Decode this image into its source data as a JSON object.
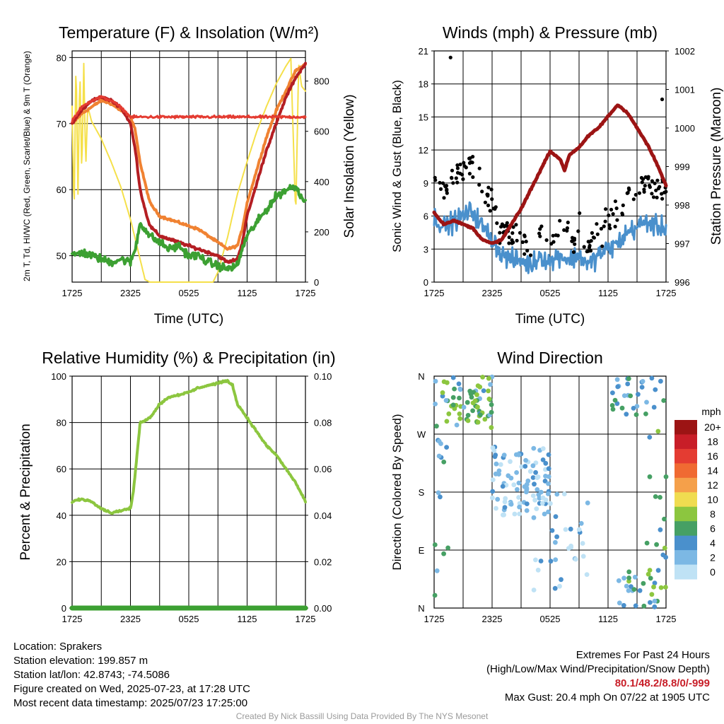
{
  "chart_data": [
    {
      "id": "temperature",
      "type": "line",
      "title": "Temperature (F) & Insolation (W/m²)",
      "xlabel": "Time (UTC)",
      "ylabel": "2m T, Td, HI/WC (Red, Green, Scarlet/Blue) & 9m T (Orange)",
      "ylabel2": "Solar Insolation (Yellow)",
      "x_ticks": [
        "1725",
        "2325",
        "0525",
        "1125",
        "1725"
      ],
      "x_hours": [
        0,
        24
      ],
      "ylim": [
        46,
        81
      ],
      "y_ticks": [
        50,
        60,
        70,
        80
      ],
      "y2lim": [
        0,
        920
      ],
      "y2_ticks": [
        0,
        200,
        400,
        600,
        800
      ],
      "grid": true,
      "series": [
        {
          "color": "#f5e04a",
          "axis": "right",
          "points": [
            [
              0,
              700
            ],
            [
              0.2,
              250
            ],
            [
              0.4,
              900
            ],
            [
              0.6,
              350
            ],
            [
              0.8,
              850
            ],
            [
              1.0,
              420
            ],
            [
              1.2,
              870
            ],
            [
              1.4,
              450
            ],
            [
              1.6,
              700
            ],
            [
              2,
              640
            ],
            [
              3,
              570
            ],
            [
              4,
              480
            ],
            [
              5,
              380
            ],
            [
              6,
              250
            ],
            [
              7,
              90
            ],
            [
              7.5,
              10
            ],
            [
              8,
              0
            ],
            [
              14.5,
              0
            ],
            [
              15,
              40
            ],
            [
              16,
              180
            ],
            [
              17,
              350
            ],
            [
              18,
              480
            ],
            [
              19,
              600
            ],
            [
              20,
              700
            ],
            [
              21,
              790
            ],
            [
              22,
              860
            ],
            [
              22.5,
              890
            ],
            [
              23,
              260
            ],
            [
              23.3,
              870
            ],
            [
              23.6,
              780
            ],
            [
              24,
              760
            ]
          ]
        },
        {
          "color": "#f08232",
          "axis": "left",
          "points": [
            [
              0,
              70
            ],
            [
              1,
              71.5
            ],
            [
              2,
              72.5
            ],
            [
              3,
              73.5
            ],
            [
              4,
              73
            ],
            [
              5,
              72
            ],
            [
              6,
              71
            ],
            [
              6.5,
              69
            ],
            [
              7,
              64
            ],
            [
              7.5,
              61
            ],
            [
              8,
              58
            ],
            [
              9,
              56
            ],
            [
              10,
              55.5
            ],
            [
              11,
              55
            ],
            [
              12,
              54.5
            ],
            [
              13,
              54
            ],
            [
              14,
              53
            ],
            [
              15,
              52
            ],
            [
              16,
              51
            ],
            [
              17,
              51.5
            ],
            [
              17.5,
              54
            ],
            [
              18,
              58
            ],
            [
              19,
              63
            ],
            [
              20,
              68
            ],
            [
              21,
              72
            ],
            [
              22,
              75
            ],
            [
              23,
              78
            ],
            [
              24,
              79
            ]
          ]
        },
        {
          "color": "#b41e23",
          "axis": "left",
          "points": [
            [
              0,
              70
            ],
            [
              1,
              72
            ],
            [
              2,
              73.5
            ],
            [
              3,
              74
            ],
            [
              4,
              73.5
            ],
            [
              5,
              72.5
            ],
            [
              6,
              70
            ],
            [
              6.5,
              66
            ],
            [
              7,
              60
            ],
            [
              7.5,
              57
            ],
            [
              8,
              54.5
            ],
            [
              9,
              53
            ],
            [
              10,
              52.5
            ],
            [
              11,
              52
            ],
            [
              12,
              51.5
            ],
            [
              13,
              51
            ],
            [
              14,
              50.5
            ],
            [
              15,
              50
            ],
            [
              16,
              49
            ],
            [
              17,
              49.5
            ],
            [
              17.5,
              52
            ],
            [
              18,
              56
            ],
            [
              19,
              61
            ],
            [
              20,
              66
            ],
            [
              21,
              70
            ],
            [
              22,
              74
            ],
            [
              23,
              77
            ],
            [
              24,
              79
            ]
          ]
        },
        {
          "color": "#e43c32",
          "axis": "left",
          "points": [
            [
              0,
              70.5
            ],
            [
              1,
              72.5
            ],
            [
              2,
              73.5
            ],
            [
              3,
              74
            ],
            [
              4,
              73.5
            ],
            [
              5,
              72.5
            ],
            [
              6,
              71
            ]
          ]
        },
        {
          "color": "#3ca032",
          "axis": "left",
          "points": [
            [
              0,
              50
            ],
            [
              1,
              50.5
            ],
            [
              2,
              50
            ],
            [
              3,
              49.5
            ],
            [
              4,
              49
            ],
            [
              5,
              49.5
            ],
            [
              6,
              49
            ],
            [
              6.5,
              51
            ],
            [
              7,
              55
            ],
            [
              8,
              53
            ],
            [
              9,
              52
            ],
            [
              10,
              51
            ],
            [
              11,
              51.5
            ],
            [
              12,
              50
            ],
            [
              13,
              50
            ],
            [
              14,
              49
            ],
            [
              15,
              48.5
            ],
            [
              16,
              48
            ],
            [
              17,
              48.5
            ],
            [
              17.5,
              51
            ],
            [
              18,
              53
            ],
            [
              19,
              55
            ],
            [
              20,
              57
            ],
            [
              21,
              59
            ],
            [
              22,
              60
            ],
            [
              23,
              60.5
            ],
            [
              24,
              58
            ]
          ]
        }
      ]
    },
    {
      "id": "winds",
      "type": "line",
      "title": "Winds (mph) & Pressure (mb)",
      "xlabel": "Time (UTC)",
      "ylabel": "Sonic Wind & Gust (Blue, Black)",
      "ylabel2": "Station Pressure (Maroon)",
      "x_ticks": [
        "1725",
        "2325",
        "0525",
        "1125",
        "1725"
      ],
      "x_hours": [
        0,
        24
      ],
      "ylim": [
        0,
        21
      ],
      "y_ticks": [
        0,
        3,
        6,
        9,
        12,
        15,
        18,
        21
      ],
      "y2lim": [
        996,
        1002
      ],
      "y2_ticks": [
        996,
        997,
        998,
        999,
        1000,
        1001,
        1002
      ],
      "grid": true,
      "gust_scatter": {
        "color": "#000000",
        "note_max": [
          1.7,
          20.4
        ],
        "extra_high": [
          23.6,
          16.6
        ]
      },
      "series": [
        {
          "color": "#4a90cc",
          "axis": "left",
          "points": [
            [
              0,
              6
            ],
            [
              1,
              5
            ],
            [
              2,
              5.5
            ],
            [
              3,
              6
            ],
            [
              4,
              6.5
            ],
            [
              5,
              5
            ],
            [
              6,
              4
            ],
            [
              7,
              2.5
            ],
            [
              8,
              2
            ],
            [
              9,
              2
            ],
            [
              10,
              1.5
            ],
            [
              11,
              2.5
            ],
            [
              12,
              1.8
            ],
            [
              13,
              2.5
            ],
            [
              14,
              2
            ],
            [
              15,
              2.5
            ],
            [
              16,
              1.5
            ],
            [
              17,
              2.5
            ],
            [
              18,
              3
            ],
            [
              19,
              3.5
            ],
            [
              20,
              4.5
            ],
            [
              21,
              5
            ],
            [
              22,
              5.5
            ],
            [
              23,
              5
            ],
            [
              24,
              5
            ]
          ]
        },
        {
          "color": "#9c1414",
          "axis": "right",
          "points": [
            [
              0,
              997.8
            ],
            [
              1,
              997.5
            ],
            [
              2,
              997.6
            ],
            [
              3,
              997.5
            ],
            [
              4,
              997.4
            ],
            [
              5,
              997.1
            ],
            [
              6,
              997
            ],
            [
              7,
              997.1
            ],
            [
              8,
              997.5
            ],
            [
              9,
              997.9
            ],
            [
              10,
              998.4
            ],
            [
              11,
              998.9
            ],
            [
              12,
              999.4
            ],
            [
              13,
              999.2
            ],
            [
              13.5,
              998.9
            ],
            [
              14,
              999.3
            ],
            [
              15,
              999.5
            ],
            [
              16,
              999.8
            ],
            [
              17,
              1000
            ],
            [
              18,
              1000.3
            ],
            [
              19,
              1000.6
            ],
            [
              20,
              1000.4
            ],
            [
              21,
              1000
            ],
            [
              22,
              999.6
            ],
            [
              23,
              999.1
            ],
            [
              24,
              998.5
            ]
          ]
        }
      ]
    },
    {
      "id": "humidity",
      "type": "line",
      "title": "Relative Humidity (%) & Precipitation (in)",
      "xlabel": "",
      "ylabel": "Percent & Precipitation",
      "x_ticks": [
        "1725",
        "2325",
        "0525",
        "1125",
        "1725"
      ],
      "x_hours": [
        0,
        24
      ],
      "ylim": [
        0,
        100
      ],
      "y_ticks": [
        0,
        20,
        40,
        60,
        80,
        100
      ],
      "y2lim": [
        0,
        0.1
      ],
      "y2_ticks": [
        "0.00",
        "0.02",
        "0.04",
        "0.06",
        "0.08",
        "0.10"
      ],
      "grid": true,
      "series": [
        {
          "color": "#8cc63f",
          "axis": "left",
          "points": [
            [
              0,
              46
            ],
            [
              1,
              47
            ],
            [
              2,
              46
            ],
            [
              3,
              43
            ],
            [
              4,
              41
            ],
            [
              5,
              42
            ],
            [
              6,
              43
            ],
            [
              6.3,
              50
            ],
            [
              7,
              80
            ],
            [
              8,
              82
            ],
            [
              9,
              88
            ],
            [
              10,
              91
            ],
            [
              11,
              92
            ],
            [
              12,
              93
            ],
            [
              13,
              95
            ],
            [
              14,
              96
            ],
            [
              15,
              97
            ],
            [
              16,
              98
            ],
            [
              16.5,
              96
            ],
            [
              17,
              88
            ],
            [
              18,
              82
            ],
            [
              19,
              76
            ],
            [
              20,
              70
            ],
            [
              21,
              66
            ],
            [
              22,
              60
            ],
            [
              23,
              54
            ],
            [
              24,
              46
            ]
          ]
        },
        {
          "color": "#3ca032",
          "axis": "left",
          "points": [
            [
              0,
              0
            ],
            [
              24,
              0
            ]
          ]
        }
      ]
    },
    {
      "id": "direction",
      "type": "scatter",
      "title": "Wind Direction",
      "xlabel": "",
      "ylabel": "Direction (Colored By Speed)",
      "x_ticks": [
        "1725",
        "2325",
        "0525",
        "1125",
        "1725"
      ],
      "x_hours": [
        0,
        24
      ],
      "y_ticks": [
        "N",
        "E",
        "S",
        "W",
        "N"
      ],
      "ylim": [
        0,
        360
      ],
      "grid": true,
      "colorbar": {
        "title": "mph",
        "labels": [
          "20+",
          "18",
          "16",
          "14",
          "12",
          "10",
          "8",
          "6",
          "4",
          "2",
          "0"
        ],
        "colors": [
          "#9c1414",
          "#c81e28",
          "#e43c32",
          "#f06a32",
          "#f5a04a",
          "#f0dc50",
          "#8cc63f",
          "#46a064",
          "#4a90cc",
          "#7cb8e4",
          "#bfe2f5"
        ]
      }
    }
  ],
  "info": {
    "location": "Location: Sprakers",
    "elevation": "Station elevation: 199.857 m",
    "latlon": "Station lat/lon: 42.8743; -74.5086",
    "created": "Figure created on Wed, 2025-07-23, at 17:28 UTC",
    "recent": "Most recent data timestamp: 2025/07/23 17:25:00"
  },
  "extremes": {
    "title": "Extremes For Past 24 Hours",
    "subtitle": "(High/Low/Max Wind/Precipitation/Snow Depth)",
    "values": "80.1/48.2/8.8/0/-999",
    "gust": "Max Gust: 20.4 mph On 07/22 at 1905 UTC"
  },
  "credit": "Created By Nick Bassill Using Data Provided By The NYS Mesonet"
}
